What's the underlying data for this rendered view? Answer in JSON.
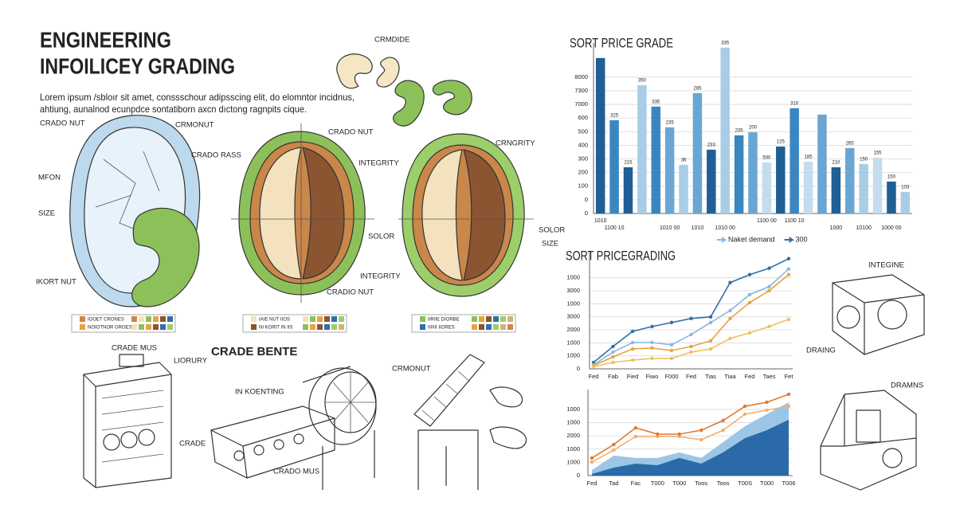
{
  "header": {
    "title": [
      "ENGINEERING",
      "INFOILICEY GRADING"
    ],
    "text": [
      "Lorem ipsum /sbloır sit amet, conssschour adipsscing elit, do elomntor incidnus,",
      "ahtiung, aunalnod ecunpdce sontatiborn axcn dıctong ragnpits cique."
    ]
  },
  "labels": [
    "CRADO NUT",
    "CRMONUT",
    "MFON",
    "SIZE",
    "IKORT NUT",
    "CRMDIDE",
    "CRADO NUT",
    "CRADO RASS",
    "INTEGRITY",
    "SOLOR",
    "INTEGRITY",
    "CRADIO NUT",
    "CRNGRITY",
    "SOLOR",
    "SIZE",
    "CRADE MUS",
    "LIORURY",
    "CRADE BENTE",
    "IN KOENTING",
    "CRADO MUS",
    "CRADE",
    "CRMONUT",
    "INTEGINE",
    "DRAING",
    "DRAMNS"
  ],
  "swatch_labels": [
    "IOOET CRONES",
    "NOIOTNOR GROES",
    "IAIE NUT IIOS",
    "NI KORIT IN IIS",
    "IIRIIE DIORBE",
    "IIIIIII IIORES"
  ],
  "chart_data": [
    {
      "type": "bar",
      "title": "SORT PRICE GRADE",
      "categories": [
        "1010",
        "1100 10",
        null,
        null,
        null,
        "1010 00",
        null,
        "1010",
        null,
        "1010 00",
        null,
        null,
        "1100 00",
        null,
        "1100 10",
        null,
        null,
        "1000",
        null,
        "10100",
        null,
        "1000 00",
        null
      ],
      "values": [
        1140,
        684,
        339,
        941,
        784,
        632,
        357,
        883,
        468,
        1216,
        573,
        596,
        374,
        491,
        772,
        380,
        725,
        339,
        480,
        363,
        409,
        234,
        158
      ],
      "colors": [
        "#1f5f96",
        "#3a86c0",
        "#1f5f96",
        "#a9cde6",
        "#3a86c0",
        "#6aa6d4",
        "#a9cde6",
        "#6aa6d4",
        "#1f5f96",
        "#a9cde6",
        "#3a86c0",
        "#6aa6d4",
        "#c4dcee",
        "#1f5f96",
        "#3a86c0",
        "#c4dcee",
        "#6aa6d4",
        "#1f5f96",
        "#6aa6d4",
        "#a9cde6",
        "#c4dcee",
        "#1f5f96",
        "#a9cde6"
      ],
      "annotations": [
        null,
        "325",
        "215",
        "350",
        "335",
        "235",
        "36",
        "285",
        "233",
        "335",
        "235",
        "200",
        "500",
        "125",
        "310",
        "185",
        null,
        "210",
        "265",
        "150",
        "155",
        "150",
        "103"
      ],
      "ylim": [
        0,
        1250
      ],
      "yticks": [
        0,
        {
          "value": 100,
          "label": "0"
        },
        {
          "value": 200,
          "label": "100"
        },
        {
          "value": 300,
          "label": "200"
        },
        {
          "value": 400,
          "label": "300"
        },
        {
          "value": 500,
          "label": "400"
        },
        {
          "value": 600,
          "label": "500"
        },
        {
          "value": 700,
          "label": "600"
        },
        {
          "value": 800,
          "label": "7000"
        },
        {
          "value": 900,
          "label": "7300"
        },
        {
          "value": 1000,
          "label": "8000"
        }
      ],
      "grid": true,
      "legend": [
        {
          "name": "Naket demand",
          "color": "#8ab8de"
        },
        {
          "name": "300",
          "color": "#2f6fa8"
        }
      ]
    },
    {
      "type": "line",
      "title": "SORT PRICEGRADING",
      "categories": [
        "Fed",
        "Fab",
        "Fied",
        "Fiwo",
        "F000",
        "Fed",
        "Tias",
        "Tiaa",
        "Fed",
        "Taes",
        "Fet"
      ],
      "series": [
        {
          "color": "#2f6fa8",
          "values": [
            49,
            172,
            288,
            325,
            356,
            387,
            399,
            663,
            724,
            773,
            847
          ]
        },
        {
          "color": "#8ab8de",
          "values": [
            31,
            129,
            202,
            202,
            184,
            264,
            356,
            448,
            571,
            632,
            767
          ]
        },
        {
          "color": "#e8a33a",
          "values": [
            25,
            92,
            153,
            160,
            141,
            172,
            215,
            387,
            509,
            601,
            724
          ]
        },
        {
          "color": "#f0c060",
          "values": [
            18,
            49,
            67,
            80,
            80,
            129,
            153,
            233,
            276,
            325,
            380
          ]
        }
      ],
      "ylim": [
        0,
        900
      ],
      "yticks": [
        0,
        {
          "value": 100,
          "label": "1000"
        },
        {
          "value": 200,
          "label": "1000"
        },
        {
          "value": 300,
          "label": "2000"
        },
        {
          "value": 400,
          "label": "3000"
        },
        {
          "value": 500,
          "label": "1000"
        },
        {
          "value": 600,
          "label": "3000"
        },
        {
          "value": 700,
          "label": "1000"
        }
      ],
      "grid": true
    },
    {
      "type": "area",
      "categories": [
        "Fed",
        "Tad",
        "Fac",
        "T000",
        "T000",
        "Toos",
        "Toos",
        "T00S",
        "T000",
        "T006"
      ],
      "series": [
        {
          "color": "#9cc6e6",
          "style": "area",
          "values": [
            42,
            151,
            133,
            133,
            175,
            133,
            253,
            373,
            464,
            554
          ]
        },
        {
          "color": "#2a6aa8",
          "style": "area",
          "values": [
            12,
            60,
            90,
            78,
            133,
            90,
            175,
            283,
            343,
            422
          ]
        },
        {
          "color": "#f0b070",
          "style": "line",
          "values": [
            102,
            193,
            295,
            295,
            295,
            271,
            343,
            464,
            494,
            524
          ]
        },
        {
          "color": "#e07a30",
          "style": "line",
          "values": [
            133,
            235,
            361,
            313,
            313,
            343,
            416,
            524,
            554,
            614
          ]
        }
      ],
      "ylim": [
        0,
        650
      ],
      "yticks": [
        0,
        {
          "value": 100,
          "label": "1000"
        },
        {
          "value": 200,
          "label": "1000"
        },
        {
          "value": 300,
          "label": "2000"
        },
        {
          "value": 400,
          "label": "1000"
        },
        {
          "value": 500,
          "label": "1000"
        }
      ],
      "grid": true
    }
  ]
}
